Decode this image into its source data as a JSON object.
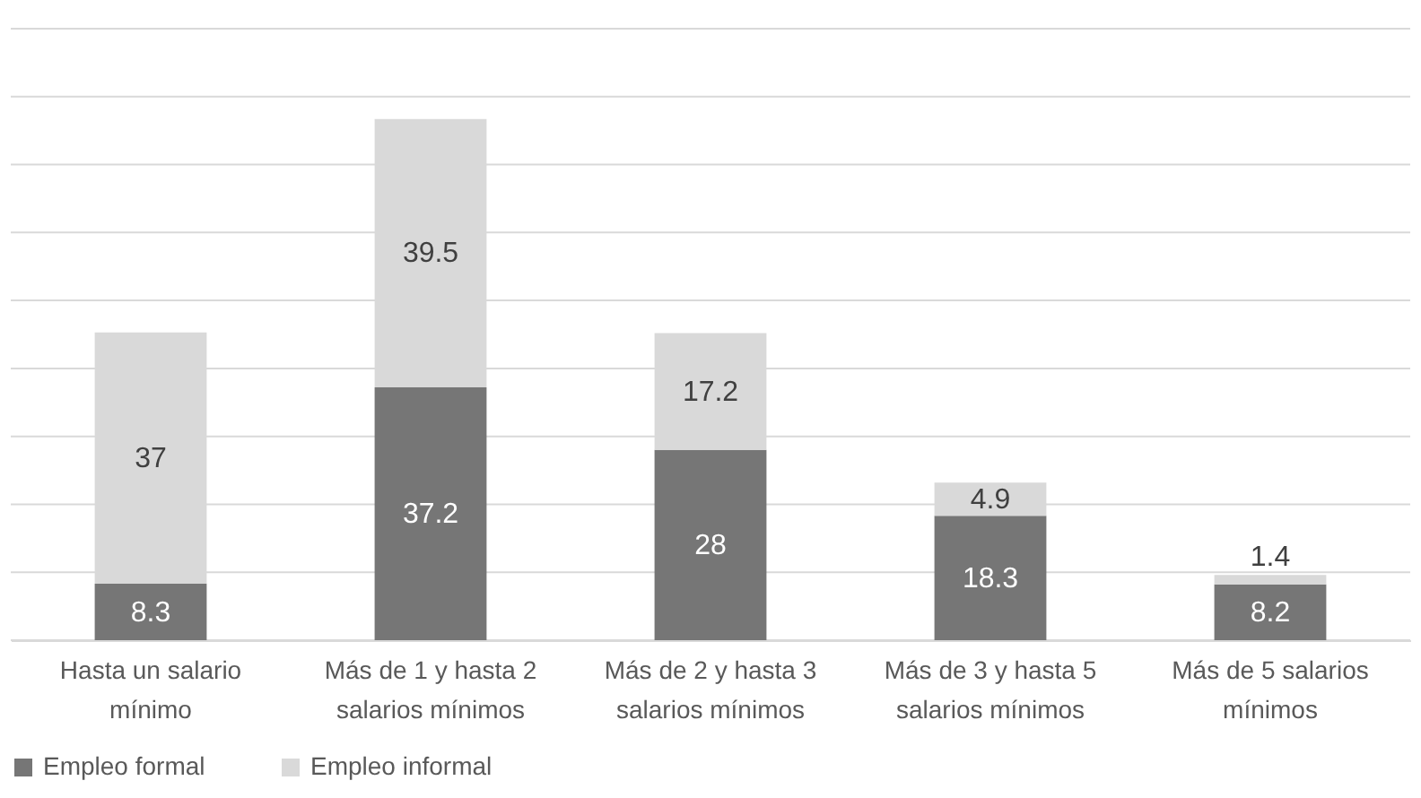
{
  "chart_data": {
    "type": "bar",
    "stacked": true,
    "categories": [
      "Hasta un salario mínimo",
      "Más de 1 y hasta 2 salarios mínimos",
      "Más de 2 y hasta 3 salarios mínimos",
      "Más de 3 y hasta 5 salarios mínimos",
      "Más de 5 salarios mínimos"
    ],
    "series": [
      {
        "name": "Empleo formal",
        "color": "#767676",
        "values": [
          8.3,
          37.2,
          28,
          18.3,
          8.2
        ]
      },
      {
        "name": "Empleo informal",
        "color": "#d9d9d9",
        "values": [
          37,
          39.5,
          17.2,
          4.9,
          1.4
        ]
      }
    ],
    "data_labels": true,
    "ylim": [
      0,
      90
    ],
    "yticks": [
      {
        "value": 0,
        "label": null
      },
      {
        "value": 10,
        "label": null
      },
      {
        "value": 20,
        "label": null
      },
      {
        "value": 30,
        "label": null
      },
      {
        "value": 40,
        "label": null
      },
      {
        "value": 50,
        "label": null
      },
      {
        "value": 60,
        "label": null
      },
      {
        "value": 70,
        "label": null
      },
      {
        "value": 80,
        "label": null
      },
      {
        "value": 90,
        "label": null
      }
    ],
    "tick_labels": "x",
    "grid": "y",
    "legend": "bottom"
  }
}
